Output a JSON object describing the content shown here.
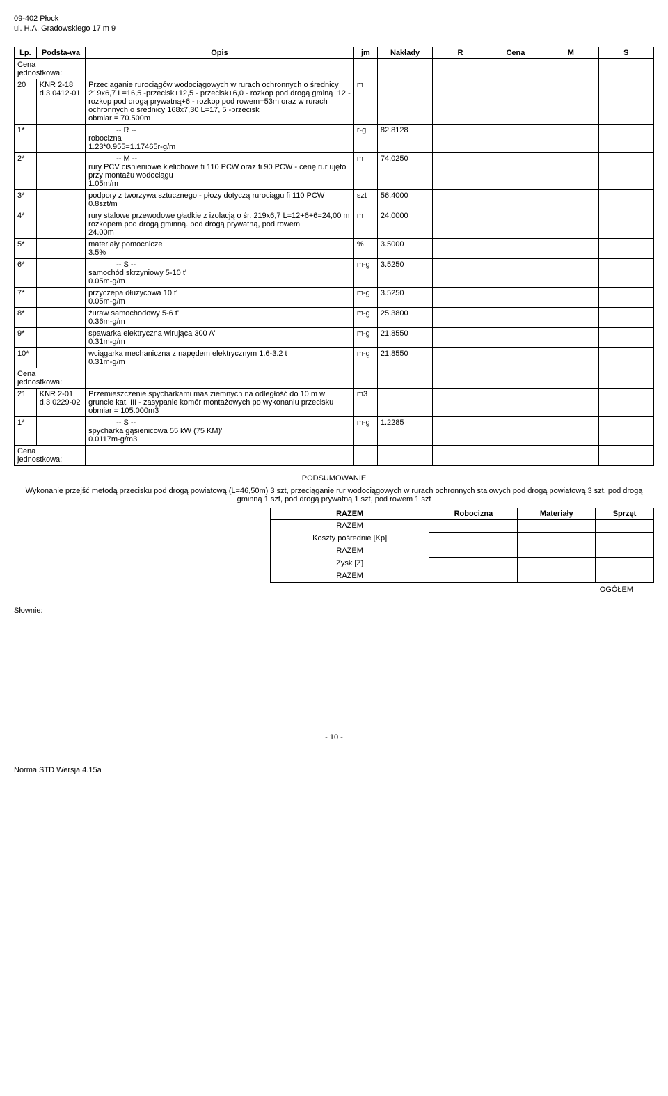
{
  "header": {
    "line1": "09-402 Płock",
    "line2": "ul. H.A. Gradowskiego 17 m 9"
  },
  "columns": {
    "lp": "Lp.",
    "base": "Podsta-wa",
    "desc": "Opis",
    "jm": "jm",
    "nak": "Nakłady",
    "r": "R",
    "cena": "Cena",
    "m": "M",
    "s": "S"
  },
  "cena_label": "Cena jednostkowa:",
  "row20": {
    "lp": "20",
    "base": "KNR 2-18 d.3 0412-01",
    "desc": "Przeciaganie rurociągów wodociągowych w rurach ochronnych o średnicy 219x6,7 L=16,5 -przecisk+12,5 - przecisk+6,0 - rozkop pod drogą gminą+12 - rozkop pod drogą prywatną+6 - rozkop pod rowem=53m oraz w rurach ochronnych o średnicy 168x7,30 L=17, 5 -przecisk\nobmiar  = 70.500m",
    "jm": "m"
  },
  "r_header": "-- R --",
  "r1": {
    "lp": "1*",
    "desc": "robocizna\n1.23*0.955=1.17465r-g/m",
    "jm": "r-g",
    "nak": "82.8128"
  },
  "m_header": "-- M --",
  "m2": {
    "lp": "2*",
    "desc": "rury PCV ciśnieniowe kielichowe fi 110 PCW oraz fi 90 PCW - cenę rur ujęto przy montażu wodociągu\n1.05m/m",
    "jm": "m",
    "nak": "74.0250"
  },
  "m3": {
    "lp": "3*",
    "desc": "podpory z tworzywa sztucznego - płozy dotyczą rurociągu fi 110 PCW\n0.8szt/m",
    "jm": "szt",
    "nak": "56.4000"
  },
  "m4": {
    "lp": "4*",
    "desc": "rury stalowe przewodowe gładkie z izolacją o śr. 219x6,7 L=12+6+6=24,00 m rozkopem pod drogą gminną. pod drogą prywatną, pod rowem\n24.00m",
    "jm": "m",
    "nak": "24.0000"
  },
  "m5": {
    "lp": "5*",
    "desc": "materiały pomocnicze\n3.5%",
    "jm": "%",
    "nak": "3.5000"
  },
  "s_header": "-- S --",
  "s6": {
    "lp": "6*",
    "desc": "samochód skrzyniowy 5-10 t'\n0.05m-g/m",
    "jm": "m-g",
    "nak": "3.5250"
  },
  "s7": {
    "lp": "7*",
    "desc": "przyczepa dłużycowa 10 t'\n0.05m-g/m",
    "jm": "m-g",
    "nak": "3.5250"
  },
  "s8": {
    "lp": "8*",
    "desc": "żuraw samochodowy 5-6 t'\n0.36m-g/m",
    "jm": "m-g",
    "nak": "25.3800"
  },
  "s9": {
    "lp": "9*",
    "desc": "spawarka elektryczna wirująca 300 A'\n0.31m-g/m",
    "jm": "m-g",
    "nak": "21.8550"
  },
  "s10": {
    "lp": "10*",
    "desc": "wciągarka mechaniczna z napędem elektrycznym 1.6-3.2 t\n0.31m-g/m",
    "jm": "m-g",
    "nak": "21.8550"
  },
  "row21": {
    "lp": "21",
    "base": "KNR 2-01 d.3 0229-02",
    "desc": "Przemieszczenie spycharkami mas ziemnych na odległość do 10 m w gruncie kat. III - zasypanie komór montażowych po wykonaniu przecisku\nobmiar  = 105.000m3",
    "jm": "m3"
  },
  "s_header2": "-- S --",
  "s1b": {
    "lp": "1*",
    "desc": "spycharka gąsienicowa 55 kW (75 KM)'\n0.0117m-g/m3",
    "jm": "m-g",
    "nak": "1.2285"
  },
  "summary": {
    "title": "PODSUMOWANIE",
    "desc": "Wykonanie przejść metodą przecisku pod drogą powiatową (L=46,50m) 3 szt,  przeciąganie rur wodociągowych w rurach ochronnych stalowych pod drogą powiatową 3 szt, pod drogą  gminną 1 szt, pod drogą prywatną 1 szt, pod rowem 1 szt",
    "cols": {
      "razem": "RAZEM",
      "rob": "Robocizna",
      "mat": "Materiały",
      "spr": "Sprzęt"
    },
    "rows": {
      "razem1": "RAZEM",
      "koszty": "Koszty pośrednie [Kp]",
      "razem2": "RAZEM",
      "zysk": "Zysk [Z]",
      "razem3": "RAZEM"
    },
    "ogolem": "OGÓŁEM"
  },
  "slownie": "Słownie:",
  "pagenum": "- 10 -",
  "footer": "Norma STD Wersja 4.15a"
}
